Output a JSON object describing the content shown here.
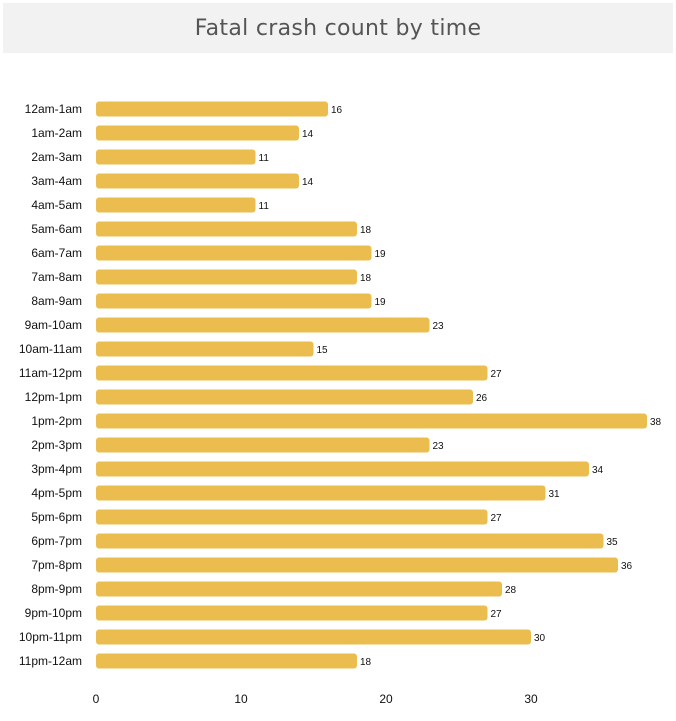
{
  "chart_data": {
    "type": "bar",
    "orientation": "horizontal",
    "title": "Fatal crash count by time",
    "categories": [
      "12am-1am",
      "1am-2am",
      "2am-3am",
      "3am-4am",
      "4am-5am",
      "5am-6am",
      "6am-7am",
      "7am-8am",
      "8am-9am",
      "9am-10am",
      "10am-11am",
      "11am-12pm",
      "12pm-1pm",
      "1pm-2pm",
      "2pm-3pm",
      "3pm-4pm",
      "4pm-5pm",
      "5pm-6pm",
      "6pm-7pm",
      "7pm-8pm",
      "8pm-9pm",
      "9pm-10pm",
      "10pm-11pm",
      "11pm-12am"
    ],
    "values": [
      16,
      14,
      11,
      14,
      11,
      18,
      19,
      18,
      19,
      23,
      15,
      27,
      26,
      38,
      23,
      34,
      31,
      27,
      35,
      36,
      28,
      27,
      30,
      18
    ],
    "xticks": [
      0,
      10,
      20,
      30
    ],
    "xlim": [
      0,
      38
    ],
    "grid": false,
    "bar_color": "#ebbd4e"
  }
}
